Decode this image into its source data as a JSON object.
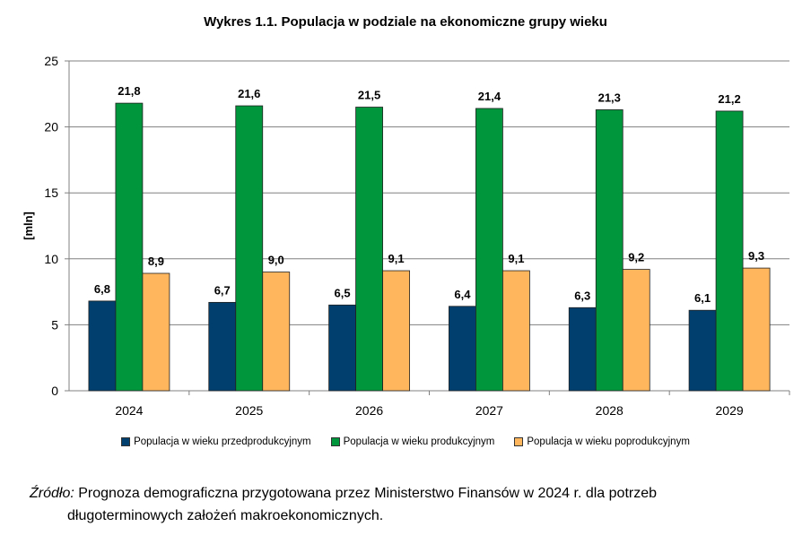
{
  "chart_data": {
    "type": "bar",
    "title": "Wykres 1.1. Populacja  w podziale na ekonomiczne grupy wieku",
    "ylabel": "[mln]",
    "xlabel": "",
    "ylim": [
      0,
      25
    ],
    "yticks": [
      0,
      5,
      10,
      15,
      20,
      25
    ],
    "grid": true,
    "legend_position": "bottom",
    "categories": [
      "2024",
      "2025",
      "2026",
      "2027",
      "2028",
      "2029"
    ],
    "series": [
      {
        "name": "Populacja w wieku przedprodukcyjnym",
        "color": "#003F6E",
        "values": [
          6.8,
          6.7,
          6.5,
          6.4,
          6.3,
          6.1
        ],
        "labels": [
          "6,8",
          "6,7",
          "6,5",
          "6,4",
          "6,3",
          "6,1"
        ]
      },
      {
        "name": "Populacja w wieku produkcyjnym",
        "color": "#00963C",
        "values": [
          21.8,
          21.6,
          21.5,
          21.4,
          21.3,
          21.2
        ],
        "labels": [
          "21,8",
          "21,6",
          "21,5",
          "21,4",
          "21,3",
          "21,2"
        ]
      },
      {
        "name": "Populacja w wieku poprodukcyjnym",
        "color": "#FFB65C",
        "values": [
          8.9,
          9.0,
          9.1,
          9.1,
          9.2,
          9.3
        ],
        "labels": [
          "8,9",
          "9,0",
          "9,1",
          "9,1",
          "9,2",
          "9,3"
        ]
      }
    ]
  },
  "source": {
    "label": "Źródło:",
    "text_line1": " Prognoza demograficzna przygotowana przez Ministerstwo Finansów w 2024 r. dla potrzeb",
    "text_line2": "długoterminowych założeń makroekonomicznych."
  }
}
